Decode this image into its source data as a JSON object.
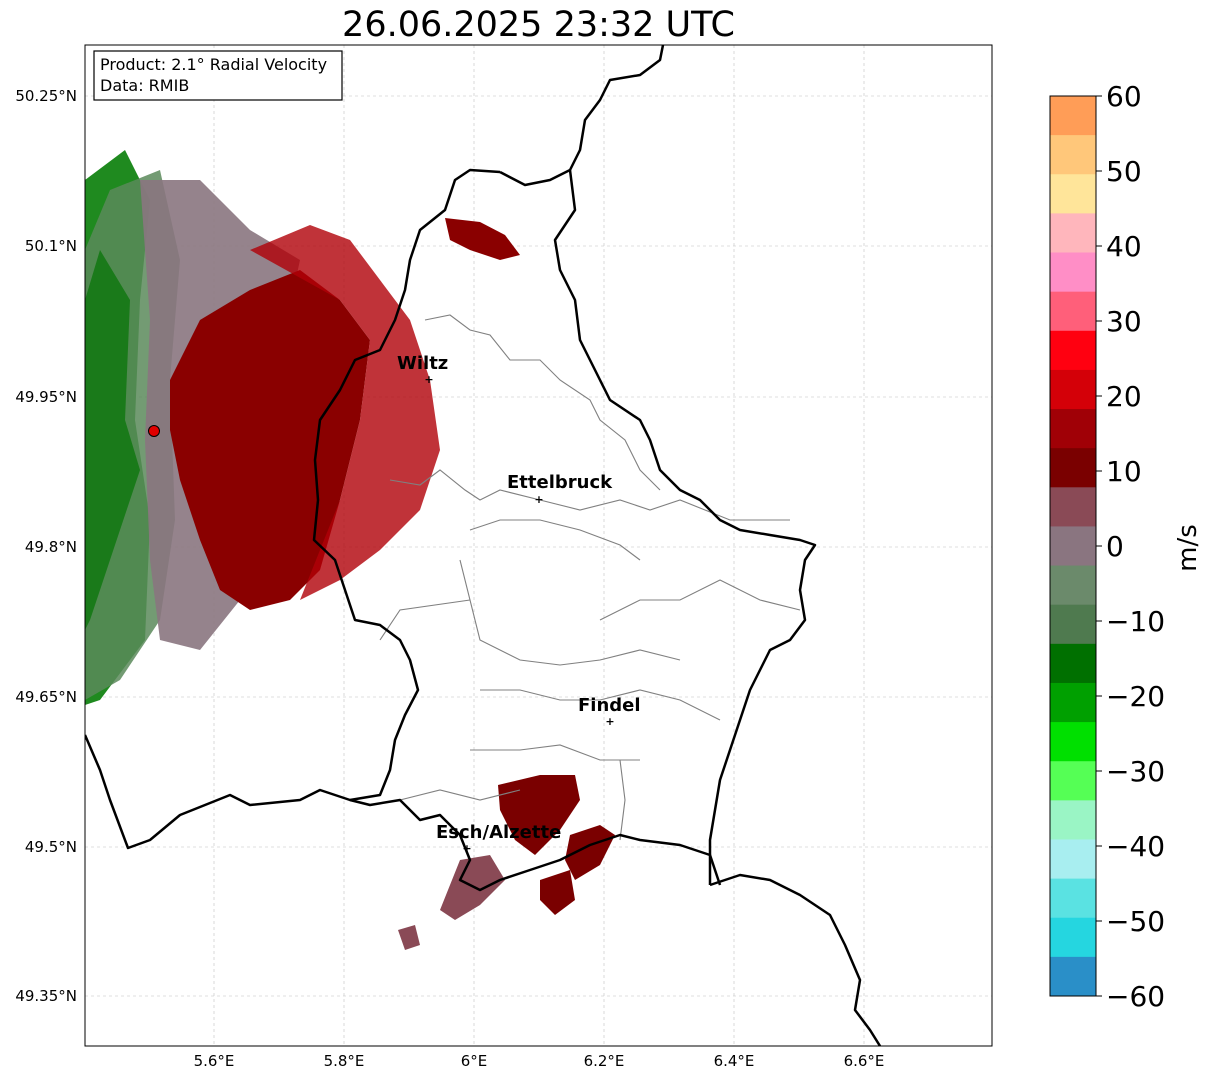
{
  "title": "26.06.2025 23:32 UTC",
  "info_box": {
    "line1": "Product: 2.1° Radial Velocity",
    "line2": "Data: RMIB"
  },
  "axes": {
    "lon_ticks": [
      "5.6°E",
      "5.8°E",
      "6°E",
      "6.2°E",
      "6.4°E",
      "6.6°E"
    ],
    "lat_ticks": [
      "50.25°N",
      "50.1°N",
      "49.95°N",
      "49.8°N",
      "49.65°N",
      "49.5°N",
      "49.35°N"
    ],
    "grid": true
  },
  "places": [
    {
      "name": "Wiltz"
    },
    {
      "name": "Ettelbruck"
    },
    {
      "name": "Findel"
    },
    {
      "name": "Esch/Alzette"
    }
  ],
  "colorbar": {
    "label": "m/s",
    "ticks": [
      "60",
      "50",
      "40",
      "30",
      "20",
      "10",
      "0",
      "−10",
      "−20",
      "−30",
      "−40",
      "−50",
      "−60"
    ],
    "colors": [
      "#ff9d57",
      "#ffc77a",
      "#ffe59a",
      "#ffb6bc",
      "#ff8ec6",
      "#ff5f7a",
      "#ff0010",
      "#d40008",
      "#a00006",
      "#7a0000",
      "#8a4a56",
      "#8a7580",
      "#6b8a6b",
      "#4f7a4f",
      "#007000",
      "#00a000",
      "#00e000",
      "#55ff55",
      "#9af5c5",
      "#a8eef0",
      "#5ae2e2",
      "#25d6e0",
      "#2a8fc8"
    ]
  }
}
